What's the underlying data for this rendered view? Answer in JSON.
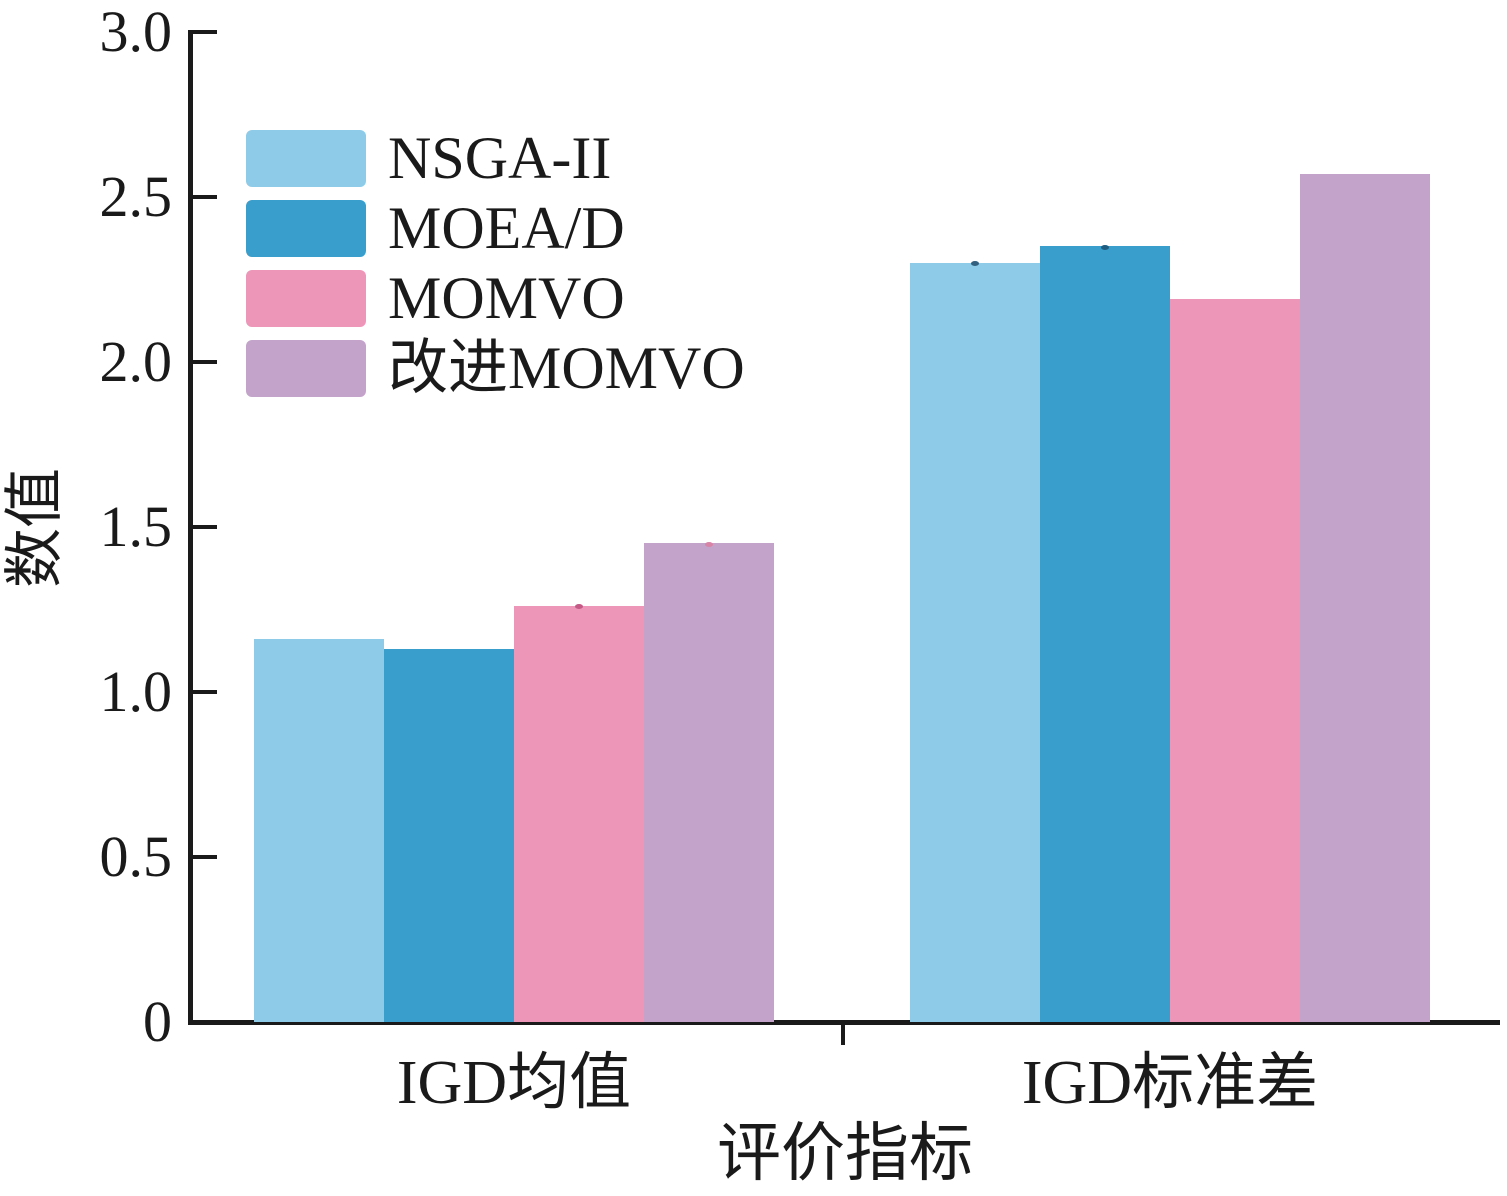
{
  "figure": {
    "background": "#ffffff",
    "axis_color": "#1a1a1a",
    "text_color": "#1a1a1a"
  },
  "chart_data": {
    "type": "bar",
    "title": "",
    "xlabel": "评价指标",
    "ylabel": "数值",
    "categories": [
      "IGD均值",
      "IGD标准差"
    ],
    "series": [
      {
        "name": "NSGA-II",
        "color": "#8ecbe8",
        "values": [
          1.16,
          2.3
        ]
      },
      {
        "name": "MOEA/D",
        "color": "#3a9ecd",
        "values": [
          1.13,
          2.35
        ]
      },
      {
        "name": "MOMVO",
        "color": "#ee96b8",
        "values": [
          1.26,
          2.19
        ]
      },
      {
        "name": "改进MOMVO",
        "color": "#c3a3ca",
        "values": [
          1.45,
          2.57
        ]
      }
    ],
    "error_dots": [
      {
        "category": 0,
        "series": "MOMVO",
        "color": "#c45a86"
      },
      {
        "category": 0,
        "series": "改进MOMVO",
        "color": "#d884a6"
      },
      {
        "category": 1,
        "series": "NSGA-II",
        "color": "#33607e"
      },
      {
        "category": 1,
        "series": "MOEA/D",
        "color": "#1f5e80"
      }
    ],
    "ylim": [
      0,
      3.0
    ],
    "yticks": [
      0,
      0.5,
      1.0,
      1.5,
      2.0,
      2.5,
      3.0
    ],
    "ytick_labels": [
      "0",
      "0.5",
      "1.0",
      "1.5",
      "2.0",
      "2.5",
      "3.0"
    ],
    "grid": false,
    "legend_position": "upper-left",
    "bar_gap_within_group": 0
  }
}
